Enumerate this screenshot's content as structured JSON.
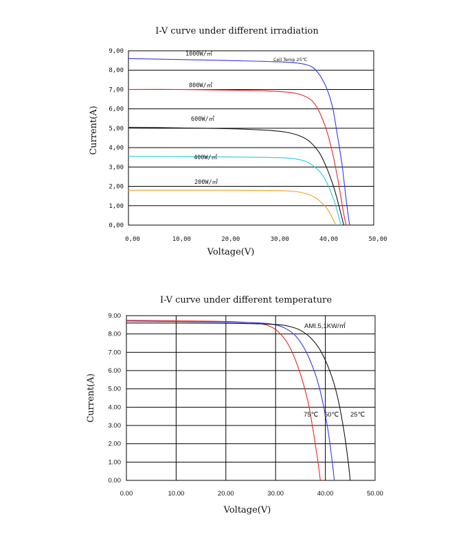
{
  "chart_data": [
    {
      "type": "line",
      "title": "I-V curve under different irradiation",
      "xlabel": "Voltage(V)",
      "ylabel": "Current(A)",
      "xlim": [
        0,
        50
      ],
      "ylim": [
        0,
        9
      ],
      "x_ticks": [
        "0,00",
        "10,00",
        "20,00",
        "30,00",
        "40,00",
        "50,00"
      ],
      "y_ticks": [
        "0,00",
        "1,00",
        "2,00",
        "3,00",
        "4,00",
        "5,00",
        "6,00",
        "7,00",
        "8,00",
        "9,00"
      ],
      "grid": "horizontal",
      "annotation": "Cell Temp 25℃",
      "series": [
        {
          "name": "1000W/㎡",
          "color": "#3333ee",
          "x": [
            0,
            10,
            20,
            28,
            33,
            36,
            38,
            40,
            41.5,
            42.5,
            43.5,
            44.3,
            44.8,
            45.1
          ],
          "y": [
            8.6,
            8.55,
            8.5,
            8.45,
            8.4,
            8.3,
            8.05,
            7.3,
            6.2,
            4.8,
            3.2,
            1.5,
            0.5,
            0
          ]
        },
        {
          "name": "800W/㎡",
          "color": "#ee2222",
          "x": [
            0,
            10,
            20,
            28,
            33,
            35.5,
            37.5,
            39,
            40.5,
            41.8,
            42.8,
            43.6,
            44.1,
            44.4
          ],
          "y": [
            7.0,
            7.0,
            6.97,
            6.93,
            6.85,
            6.7,
            6.4,
            5.8,
            4.8,
            3.5,
            2.2,
            1.0,
            0.3,
            0
          ]
        },
        {
          "name": "600W/㎡",
          "color": "#111111",
          "x": [
            0,
            10,
            20,
            28,
            32,
            35,
            37,
            39,
            40.5,
            41.8,
            42.8,
            43.5,
            43.9
          ],
          "y": [
            5.05,
            5.02,
            4.98,
            4.9,
            4.8,
            4.6,
            4.3,
            3.7,
            2.9,
            2.0,
            1.1,
            0.4,
            0
          ]
        },
        {
          "name": "400W/㎡",
          "color": "#22ccdd",
          "x": [
            0,
            10,
            20,
            28,
            33,
            36,
            38,
            39.5,
            40.8,
            42,
            42.8,
            43.3
          ],
          "y": [
            3.55,
            3.53,
            3.52,
            3.5,
            3.45,
            3.3,
            3.0,
            2.6,
            2.0,
            1.2,
            0.5,
            0
          ]
        },
        {
          "name": "200W/㎡",
          "color": "#f0a020",
          "x": [
            0,
            10,
            20,
            28,
            32,
            35,
            37,
            38.5,
            40,
            41,
            41.8,
            42.3
          ],
          "y": [
            1.8,
            1.8,
            1.8,
            1.79,
            1.77,
            1.7,
            1.55,
            1.35,
            1.0,
            0.65,
            0.25,
            0
          ]
        }
      ]
    },
    {
      "type": "line",
      "title": "I-V curve under different temperature",
      "xlabel": "Voltage(V)",
      "ylabel": "Current(A)",
      "xlim": [
        0,
        50
      ],
      "ylim": [
        0,
        9
      ],
      "x_ticks": [
        "0.00",
        "10.00",
        "20.00",
        "30.00",
        "40.00",
        "50.00"
      ],
      "y_ticks": [
        "0.00",
        "1.00",
        "2.00",
        "3.00",
        "4.00",
        "5.00",
        "6.00",
        "7.00",
        "8.00",
        "9.00"
      ],
      "grid": "both",
      "annotation": "AMI.5,1KW/㎡",
      "series": [
        {
          "name": "75℃",
          "color": "#ee2222",
          "x": [
            0,
            10,
            20,
            26,
            29,
            31,
            33,
            35,
            36.5,
            37.5,
            38.3,
            38.8,
            39
          ],
          "y": [
            8.75,
            8.72,
            8.68,
            8.6,
            8.4,
            8.0,
            7.2,
            5.8,
            4.3,
            2.8,
            1.4,
            0.4,
            0
          ]
        },
        {
          "name": "50℃",
          "color": "#3333ee",
          "x": [
            0,
            10,
            20,
            27,
            30,
            32,
            34,
            36,
            38,
            39.3,
            40.5,
            41.3,
            41.8
          ],
          "y": [
            8.7,
            8.68,
            8.65,
            8.6,
            8.5,
            8.3,
            7.9,
            7.1,
            5.8,
            4.5,
            2.8,
            1.2,
            0
          ]
        },
        {
          "name": "25℃",
          "color": "#111111",
          "x": [
            0,
            10,
            20,
            27,
            31,
            33,
            35,
            37,
            39,
            41,
            42.5,
            43.8,
            44.6,
            45
          ],
          "y": [
            8.6,
            8.6,
            8.58,
            8.55,
            8.5,
            8.4,
            8.2,
            7.8,
            7.1,
            5.9,
            4.5,
            2.6,
            1.0,
            0
          ]
        }
      ]
    }
  ]
}
